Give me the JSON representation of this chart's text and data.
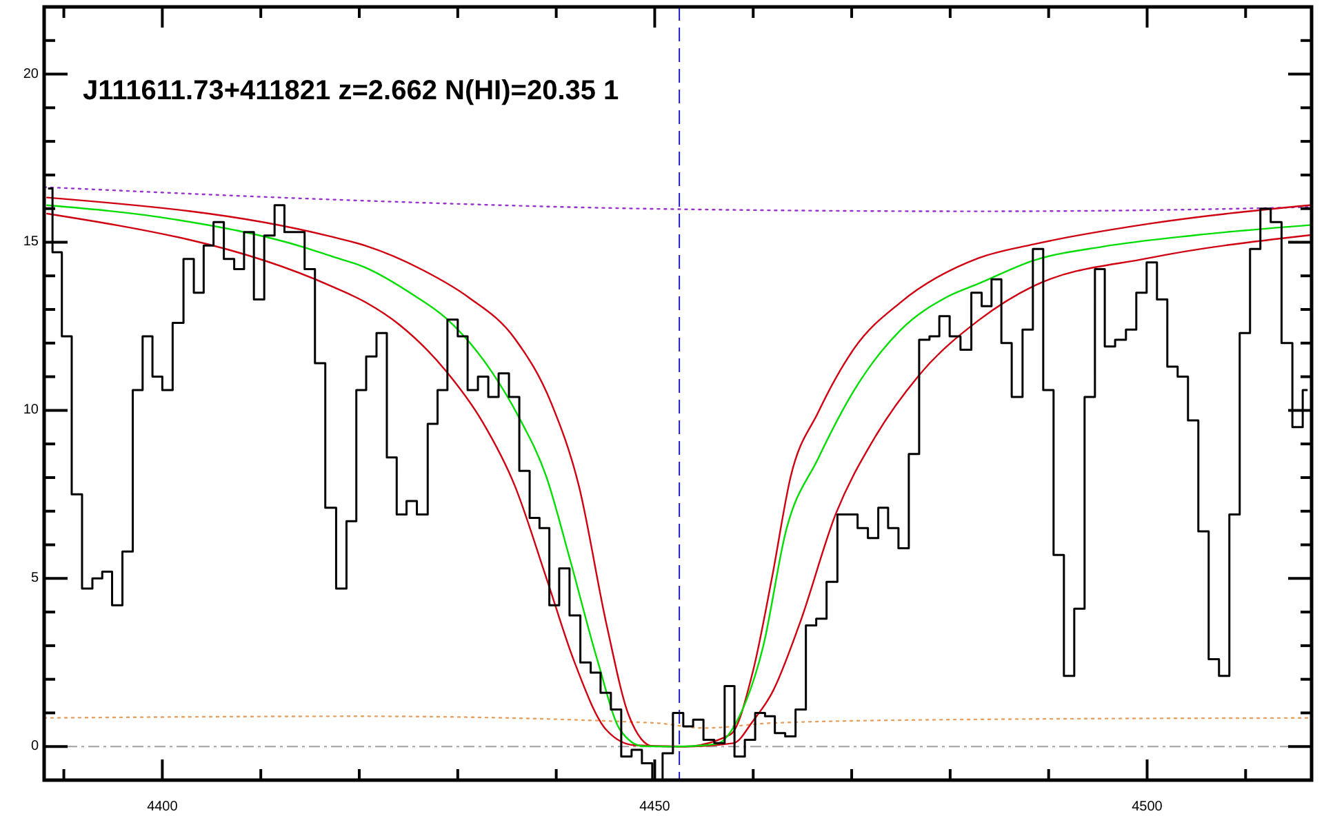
{
  "chart_data": {
    "type": "line",
    "title": "J111611.73+411821 z=2.662 N(HI)=20.35 1",
    "xlim": [
      4388,
      4516.7
    ],
    "ylim": [
      -1,
      22
    ],
    "xticks": [
      {
        "value": 4390,
        "label": null
      },
      4400,
      {
        "value": 4410,
        "label": null
      },
      {
        "value": 4420,
        "label": null
      },
      {
        "value": 4430,
        "label": null
      },
      {
        "value": 4440,
        "label": null
      },
      4450,
      {
        "value": 4460,
        "label": null
      },
      {
        "value": 4470,
        "label": null
      },
      {
        "value": 4480,
        "label": null
      },
      {
        "value": 4490,
        "label": null
      },
      4500,
      {
        "value": 4510,
        "label": null
      }
    ],
    "yticks": [
      0,
      {
        "value": 1,
        "label": null
      },
      {
        "value": 2,
        "label": null
      },
      {
        "value": 3,
        "label": null
      },
      {
        "value": 4,
        "label": null
      },
      5,
      {
        "value": 6,
        "label": null
      },
      {
        "value": 7,
        "label": null
      },
      {
        "value": 8,
        "label": null
      },
      {
        "value": 9,
        "label": null
      },
      10,
      {
        "value": 11,
        "label": null
      },
      {
        "value": 12,
        "label": null
      },
      {
        "value": 13,
        "label": null
      },
      {
        "value": 14,
        "label": null
      },
      15,
      {
        "value": 16,
        "label": null
      },
      {
        "value": 17,
        "label": null
      },
      {
        "value": 18,
        "label": null
      },
      {
        "value": 19,
        "label": null
      },
      20,
      {
        "value": 21,
        "label": null
      }
    ],
    "ref_lines": [
      {
        "axis": "y",
        "value": 0,
        "color": "#a0a0a0",
        "line_style": "dashed"
      },
      {
        "axis": "x",
        "value": 4452.5,
        "color": "#1c1cc8",
        "line_style": "dashed"
      }
    ],
    "series": [
      {
        "color": "#9932cc",
        "line_style": "dotted",
        "x": [
          4388,
          4420,
          4450.7,
          4482.9,
          4514,
          4516.7
        ],
        "values": [
          16.64,
          16.24,
          15.99,
          15.92,
          16.03,
          16.05
        ]
      },
      {
        "color": "#e8a060",
        "line_style": "dotted",
        "x": [
          4388,
          4420,
          4450,
          4455,
          4462,
          4480,
          4516.7
        ],
        "values": [
          0.85,
          0.9,
          0.7,
          0.55,
          0.7,
          0.8,
          0.85
        ]
      },
      {
        "color": "#d00010",
        "line_style": "solid",
        "x": [
          4388.3,
          4417.1,
          4420.6,
          4426.4,
          4431.1,
          4435.8,
          4439.5,
          4442.3,
          4445.1,
          4447.4,
          4449.8,
          4453,
          4457.7,
          4460,
          4461.9,
          4463.8,
          4466.6,
          4470.3,
          4475,
          4482.9,
          4488.5,
          4500.2,
          4516.5
        ],
        "values": [
          16.33,
          15.17,
          14.9,
          14.18,
          13.36,
          12.13,
          10.21,
          7.75,
          3.64,
          0.9,
          0.01,
          0,
          0.36,
          2.27,
          5.01,
          8.02,
          9.94,
          11.86,
          13.22,
          14.53,
          14.94,
          15.55,
          16.1
        ]
      },
      {
        "color": "#d00010",
        "line_style": "solid",
        "x": [
          4388.3,
          4417.1,
          4420.6,
          4424.1,
          4428.8,
          4432.5,
          4435.8,
          4439,
          4441.8,
          4445.1,
          4447.9,
          4453,
          4458,
          4460,
          4461.9,
          4464.7,
          4468.4,
          4472.2,
          4476.8,
          4482.9,
          4488.5,
          4500.2,
          4516.5
        ],
        "values": [
          15.85,
          13.7,
          13.22,
          12.54,
          11.17,
          9.66,
          7.75,
          5.01,
          2.55,
          0.49,
          0.04,
          0,
          0.1,
          0.77,
          1.59,
          3.64,
          6.93,
          9.12,
          11.03,
          12.68,
          13.7,
          14.53,
          15.21
        ]
      },
      {
        "color": "#00dd00",
        "line_style": "solid",
        "x": [
          4388.3,
          4401,
          4414.5,
          4417.1,
          4420.6,
          4425.5,
          4428.8,
          4433.4,
          4436.2,
          4439,
          4441.4,
          4444.2,
          4446.5,
          4448.8,
          4452.5,
          4456.3,
          4458.6,
          4461,
          4463.3,
          4466.6,
          4470.3,
          4475,
          4479.6,
          4482.9,
          4488.5,
          4495.5,
          4504.9,
          4516.5
        ],
        "values": [
          16.1,
          15.69,
          14.84,
          14.59,
          14.25,
          13.43,
          12.74,
          11.17,
          9.8,
          8.02,
          5.56,
          2.55,
          0.49,
          0.01,
          0,
          0.08,
          0.9,
          2.96,
          6.38,
          8.57,
          10.62,
          12.4,
          13.36,
          13.77,
          14.46,
          14.87,
          15.21,
          15.51
        ]
      },
      {
        "type": "step",
        "color": "#000000",
        "line_style": "solid",
        "x": [
          4388.4,
          4389.3,
          4390.3,
          4391.3,
          4392.4,
          4393.4,
          4394.4,
          4395.4,
          4396.5,
          4397.5,
          4398.5,
          4399.5,
          4400.5,
          4401.6,
          4402.7,
          4403.7,
          4404.7,
          4405.7,
          4406.8,
          4407.8,
          4408.8,
          4409.8,
          4410.9,
          4411.9,
          4412.9,
          4413.9,
          4415,
          4416,
          4417.1,
          4418.2,
          4419.2,
          4420.2,
          4421.2,
          4422.3,
          4423.3,
          4424.3,
          4425.3,
          4426.4,
          4427.5,
          4428.4,
          4429.5,
          4430.5,
          4431.5,
          4432.6,
          4433.6,
          4434.7,
          4435.7,
          4436.8,
          4437.8,
          4438.8,
          4439.8,
          4440.8,
          4441.9,
          4443,
          4444,
          4445,
          4446.1,
          4447.1,
          4448.2,
          4449.2,
          4450.3,
          4451.3,
          4452.4,
          4453.4,
          4454.4,
          4455.5,
          4456.6,
          4457.6,
          4458.6,
          4459.7,
          4460.7,
          4461.7,
          4462.7,
          4463.8,
          4464.8,
          4465.9,
          4466.9,
          4468,
          4469.1,
          4470.1,
          4471.1,
          4472.2,
          4473.2,
          4474.2,
          4475.3,
          4476.3,
          4477.4,
          4478.4,
          4479.4,
          4480.5,
          4481.6,
          4482.7,
          4483.7,
          4484.7,
          4485.7,
          4486.8,
          4487.9,
          4488.9,
          4490,
          4491,
          4492.1,
          4493.1,
          4494.2,
          4495.2,
          4496.2,
          4497.3,
          4498.4,
          4499.4,
          4500.5,
          4501.5,
          4502.6,
          4503.6,
          4504.7,
          4505.7,
          4506.8,
          4507.8,
          4508.9,
          4509.9,
          4511,
          4512,
          4513.1,
          4514.2,
          4515.3,
          4516.3
        ],
        "values": [
          16.6,
          14.7,
          12.2,
          7.5,
          4.7,
          5,
          5.2,
          4.2,
          5.8,
          10.6,
          12.2,
          11,
          10.6,
          12.6,
          14.5,
          13.5,
          14.9,
          15.6,
          14.5,
          14.2,
          15.3,
          13.3,
          15.2,
          16.1,
          15.3,
          15.3,
          14.2,
          11.4,
          7.1,
          4.7,
          6.7,
          10.6,
          11.6,
          12.3,
          8.6,
          6.9,
          7.3,
          6.9,
          9.6,
          10.6,
          12.7,
          12.2,
          10.6,
          11,
          10.4,
          11.1,
          10.4,
          8.2,
          6.8,
          6.5,
          4.2,
          5.3,
          3.9,
          2.5,
          2.2,
          1.6,
          1.1,
          -0.3,
          -0.1,
          -0.5,
          -1,
          -0.2,
          1,
          0.6,
          0.8,
          0.2,
          0.1,
          1.8,
          -0.3,
          0.2,
          1,
          0.9,
          0.4,
          0.3,
          1.1,
          3.6,
          3.8,
          4.9,
          6.9,
          6.9,
          6.5,
          6.2,
          7.1,
          6.5,
          5.9,
          8.7,
          12.1,
          12.2,
          12.8,
          12.2,
          11.8,
          13.5,
          13.1,
          13.9,
          12,
          10.4,
          12.4,
          14.8,
          10.6,
          5.7,
          2.1,
          4.1,
          10.4,
          14.2,
          11.9,
          12.1,
          12.4,
          13.5,
          14.4,
          13.3,
          11.3,
          11,
          9.7,
          6.4,
          2.6,
          2.1,
          6.9,
          12.3,
          14.8,
          16,
          15.6,
          12,
          9.5,
          10.6
        ]
      }
    ]
  }
}
